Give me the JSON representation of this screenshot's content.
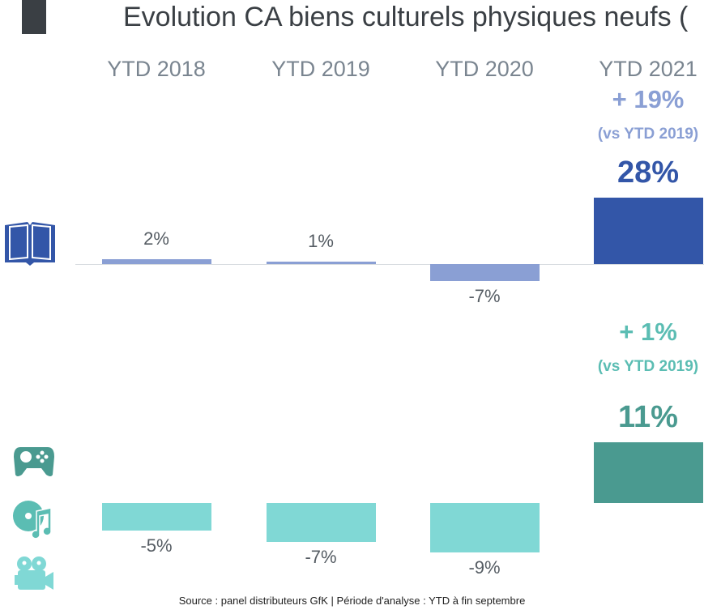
{
  "title": "Evolution CA biens culturels physiques neufs (",
  "source": "Source : panel distributeurs GfK | Période d'analyse : YTD à fin septembre",
  "colors": {
    "books_past": "#8a9fd4",
    "books_2021": "#3356a8",
    "other_past": "#80d8d5",
    "other_2021": "#4a9a90",
    "hl_books": "#8a9fd4",
    "hl_other": "#5bbdb3"
  },
  "chart_data": [
    {
      "type": "bar",
      "title": "Livres",
      "categories": [
        "YTD 2018",
        "YTD 2019",
        "YTD 2020",
        "YTD 2021"
      ],
      "values": [
        2,
        1,
        -7,
        28
      ],
      "labels": [
        "2%",
        "1%",
        "-7%",
        "28%"
      ],
      "annotation": {
        "delta": "+ 19%",
        "ref": "(vs YTD 2019)"
      }
    },
    {
      "type": "bar",
      "title": "Jeux vidéo / Musique / Vidéo",
      "categories": [
        "YTD 2018",
        "YTD 2019",
        "YTD 2020",
        "YTD 2021"
      ],
      "values": [
        -5,
        -7,
        -9,
        11
      ],
      "labels": [
        "-5%",
        "-7%",
        "-9%",
        "11%"
      ],
      "annotation": {
        "delta": "+ 1%",
        "ref": "(vs YTD 2019)"
      }
    }
  ]
}
